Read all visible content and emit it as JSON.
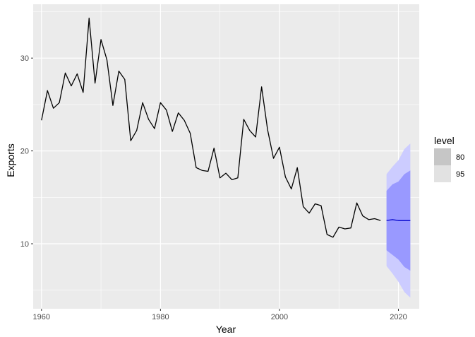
{
  "chart_data": {
    "type": "line",
    "xlabel": "Year",
    "ylabel": "Exports",
    "xlim": [
      1958.6,
      2023.5
    ],
    "ylim": [
      3.0,
      35.8
    ],
    "x_ticks": [
      1960,
      1980,
      2000,
      2020
    ],
    "x_tick_labels": [
      "1960",
      "1980",
      "2000",
      "2020"
    ],
    "y_ticks": [
      10,
      20,
      30
    ],
    "y_tick_labels": [
      "10",
      "20",
      "30"
    ],
    "grid": true,
    "panel_background": "#ebebeb",
    "series": [
      {
        "role": "actual",
        "color": "#000000",
        "x": [
          1960,
          1961,
          1962,
          1963,
          1964,
          1965,
          1966,
          1967,
          1968,
          1969,
          1970,
          1971,
          1972,
          1973,
          1974,
          1975,
          1976,
          1977,
          1978,
          1979,
          1980,
          1981,
          1982,
          1983,
          1984,
          1985,
          1986,
          1987,
          1988,
          1989,
          1990,
          1991,
          1992,
          1993,
          1994,
          1995,
          1996,
          1997,
          1998,
          1999,
          2000,
          2001,
          2002,
          2003,
          2004,
          2005,
          2006,
          2007,
          2008,
          2009,
          2010,
          2011,
          2012,
          2013,
          2014,
          2015,
          2016,
          2017
        ],
        "y": [
          23.3,
          26.5,
          24.6,
          25.2,
          28.4,
          27.0,
          28.3,
          26.3,
          34.3,
          27.3,
          32.0,
          29.8,
          24.9,
          28.6,
          27.7,
          21.1,
          22.2,
          25.2,
          23.4,
          22.4,
          25.2,
          24.4,
          22.1,
          24.1,
          23.3,
          21.9,
          18.2,
          17.9,
          17.8,
          20.3,
          17.1,
          17.6,
          16.9,
          17.1,
          23.4,
          22.2,
          21.5,
          26.9,
          22.3,
          19.2,
          20.4,
          17.2,
          15.9,
          18.2,
          14.0,
          13.3,
          14.3,
          14.1,
          11.0,
          10.7,
          11.8,
          11.6,
          11.7,
          14.4,
          13.0,
          12.6,
          12.7,
          12.5
        ]
      },
      {
        "role": "forecast",
        "color": "#0000cc",
        "x": [
          2018,
          2019,
          2020,
          2021,
          2022
        ],
        "y": [
          12.5,
          12.6,
          12.5,
          12.5,
          12.5
        ],
        "lo80": [
          9.3,
          8.8,
          8.3,
          7.5,
          7.1
        ],
        "hi80": [
          15.7,
          16.4,
          16.7,
          17.5,
          17.9
        ],
        "lo95": [
          7.6,
          6.8,
          5.9,
          4.8,
          4.2
        ],
        "hi95": [
          17.5,
          18.3,
          19.0,
          20.2,
          20.8
        ]
      }
    ],
    "legend": {
      "title": "level",
      "position": "right",
      "entries": [
        {
          "label": "80",
          "fill": "#9999ff"
        },
        {
          "label": "95",
          "fill": "#ccccff"
        }
      ],
      "key_colors": [
        "#c6c6c6",
        "#e2e2e2"
      ]
    }
  }
}
